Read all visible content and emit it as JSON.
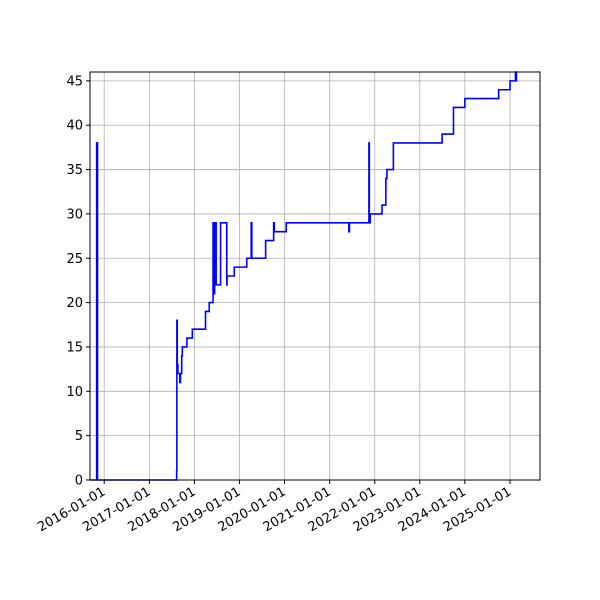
{
  "chart_data": {
    "type": "line",
    "title": "",
    "xlabel": "",
    "ylabel": "",
    "x_axis_type": "date",
    "xlim": [
      "2015-09-08",
      "2025-09-01"
    ],
    "ylim": [
      0,
      46
    ],
    "grid": true,
    "line_color": "#0000ff",
    "x_ticks": [
      "2016-01-01",
      "2017-01-01",
      "2018-01-01",
      "2019-01-01",
      "2020-01-01",
      "2021-01-01",
      "2022-01-01",
      "2023-01-01",
      "2024-01-01",
      "2025-01-01"
    ],
    "y_ticks": [
      0,
      5,
      10,
      15,
      20,
      25,
      30,
      35,
      40,
      45
    ],
    "series": [
      {
        "name": "",
        "x": [
          "2015-09-08",
          "2015-10-27",
          "2015-11-01",
          "2015-11-06",
          "2015-11-08",
          "2016-12-01",
          "2017-08-10",
          "2017-08-10",
          "2017-08-12",
          "2017-08-15",
          "2017-08-20",
          "2017-09-05",
          "2017-09-10",
          "2017-09-20",
          "2017-09-25",
          "2017-10-01",
          "2017-10-15",
          "2017-11-01",
          "2017-12-15",
          "2018-01-15",
          "2018-04-01",
          "2018-05-01",
          "2018-06-01",
          "2018-06-10",
          "2018-06-14",
          "2018-06-18",
          "2018-06-22",
          "2018-06-26",
          "2018-07-01",
          "2018-07-05",
          "2018-07-10",
          "2018-07-20",
          "2018-08-01",
          "2018-08-01",
          "2018-09-20",
          "2018-09-22",
          "2018-10-01",
          "2018-10-10",
          "2018-11-20",
          "2019-01-01",
          "2019-03-01",
          "2019-04-01",
          "2019-04-06",
          "2019-04-11",
          "2019-08-01",
          "2019-10-01",
          "2019-10-05",
          "2019-10-10",
          "2019-11-10",
          "2020-01-15",
          "2021-06-01",
          "2021-06-05",
          "2021-06-10",
          "2021-10-25",
          "2021-11-15",
          "2021-11-18",
          "2021-11-25",
          "2022-01-01",
          "2022-03-01",
          "2022-04-01",
          "2022-04-10",
          "2022-05-01",
          "2022-06-01",
          "2022-12-31",
          "2023-07-01",
          "2023-10-01",
          "2024-01-01",
          "2024-10-01",
          "2024-12-31",
          "2025-01-01",
          "2025-02-10",
          "2025-02-14",
          "2025-02-18",
          "2025-02-22"
        ],
        "y": [
          0,
          0,
          38,
          38,
          0,
          0,
          0,
          1,
          18,
          13,
          12,
          11,
          12,
          14,
          15,
          15,
          15,
          16,
          17,
          17,
          19,
          20,
          29,
          21,
          29,
          22,
          29,
          22,
          22,
          22,
          22,
          22,
          22,
          29,
          22,
          23,
          23,
          23,
          24,
          24,
          25,
          25,
          29,
          25,
          27,
          27,
          29,
          28,
          28,
          29,
          29,
          28,
          29,
          29,
          38,
          29,
          30,
          30,
          31,
          34,
          35,
          35,
          38,
          38,
          39,
          42,
          43,
          44,
          44,
          45,
          45,
          46,
          45,
          46
        ]
      }
    ]
  }
}
